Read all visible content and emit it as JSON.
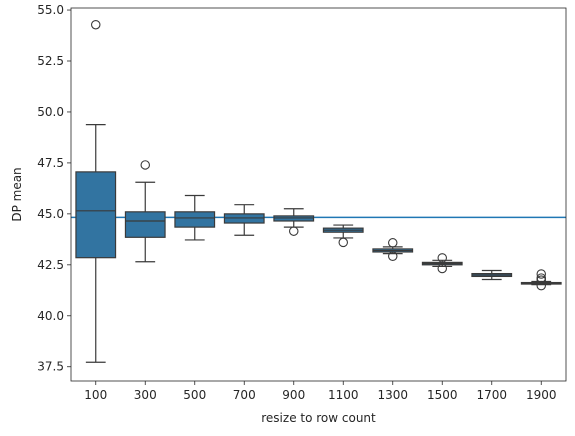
{
  "chart_data": {
    "type": "box",
    "xlabel": "resize to row count",
    "ylabel": "DP mean",
    "categories": [
      "100",
      "300",
      "500",
      "700",
      "900",
      "1100",
      "1300",
      "1500",
      "1700",
      "1900"
    ],
    "ylim": [
      36.8,
      55.1
    ],
    "yticks": [
      "37.5",
      "40.0",
      "42.5",
      "45.0",
      "47.5",
      "50.0",
      "52.5",
      "55.0"
    ],
    "yticks_values": [
      37.5,
      40.0,
      42.5,
      45.0,
      47.5,
      50.0,
      52.5,
      55.0
    ],
    "reference_line": 44.83,
    "colors": {
      "box": "#3274a1",
      "reference_line": "#1f77b4",
      "median": "#3a3a3a",
      "whisker": "#3a3a3a"
    },
    "grid": false,
    "boxes": [
      {
        "category": "100",
        "whisker_low": 37.72,
        "q1": 42.85,
        "median": 45.15,
        "q3": 47.06,
        "whisker_high": 49.38,
        "outliers": [
          54.28
        ]
      },
      {
        "category": "300",
        "whisker_low": 42.65,
        "q1": 43.85,
        "median": 44.65,
        "q3": 45.1,
        "whisker_high": 46.55,
        "outliers": [
          47.4
        ]
      },
      {
        "category": "500",
        "whisker_low": 43.72,
        "q1": 44.35,
        "median": 44.8,
        "q3": 45.1,
        "whisker_high": 45.9,
        "outliers": []
      },
      {
        "category": "700",
        "whisker_low": 43.95,
        "q1": 44.55,
        "median": 44.8,
        "q3": 45.0,
        "whisker_high": 45.45,
        "outliers": []
      },
      {
        "category": "900",
        "whisker_low": 44.35,
        "q1": 44.65,
        "median": 44.8,
        "q3": 44.9,
        "whisker_high": 45.25,
        "outliers": [
          44.15
        ]
      },
      {
        "category": "1100",
        "whisker_low": 43.82,
        "q1": 44.1,
        "median": 44.2,
        "q3": 44.3,
        "whisker_high": 44.45,
        "outliers": [
          43.6
        ]
      },
      {
        "category": "1300",
        "whisker_low": 43.05,
        "q1": 43.13,
        "median": 43.2,
        "q3": 43.28,
        "whisker_high": 43.38,
        "outliers": [
          43.58,
          42.92
        ]
      },
      {
        "category": "1500",
        "whisker_low": 42.42,
        "q1": 42.5,
        "median": 42.56,
        "q3": 42.62,
        "whisker_high": 42.72,
        "outliers": [
          42.84,
          42.32
        ]
      },
      {
        "category": "1700",
        "whisker_low": 41.78,
        "q1": 41.93,
        "median": 42.0,
        "q3": 42.07,
        "whisker_high": 42.22,
        "outliers": []
      },
      {
        "category": "1900",
        "whisker_low": 41.53,
        "q1": 41.57,
        "median": 41.6,
        "q3": 41.63,
        "whisker_high": 41.68,
        "outliers": [
          42.05,
          41.85,
          41.75,
          41.48
        ]
      }
    ]
  }
}
